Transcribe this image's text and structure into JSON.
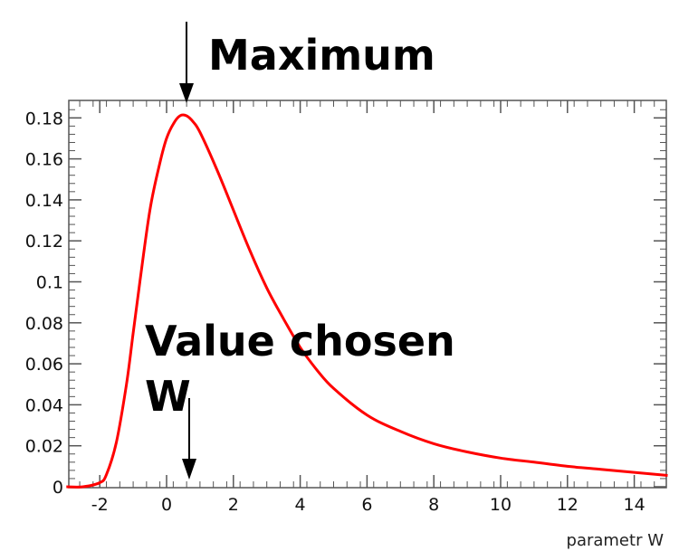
{
  "chart_data": {
    "type": "line",
    "title": "",
    "xlabel": "parametr W",
    "ylabel": "",
    "xlim": [
      -3,
      15
    ],
    "ylim": [
      0,
      0.185
    ],
    "x_ticks": [
      -2,
      0,
      2,
      4,
      6,
      8,
      10,
      12,
      14
    ],
    "x_tick_labels": [
      "-2",
      "0",
      "2",
      "4",
      "6",
      "8",
      "10",
      "12",
      "14"
    ],
    "y_ticks": [
      0,
      0.02,
      0.04,
      0.06,
      0.08,
      0.1,
      0.12,
      0.14,
      0.16,
      0.18
    ],
    "y_tick_labels": [
      "0",
      "0.02",
      "0.04",
      "0.06",
      "0.08",
      "0.1",
      "0.12",
      "0.14",
      "0.16",
      "0.18"
    ],
    "grid": false,
    "series": [
      {
        "color": "#ff0000",
        "x": [
          -3,
          -2.5,
          -2,
          -1.8,
          -1.5,
          -1.2,
          -1,
          -0.8,
          -0.5,
          -0.2,
          0,
          0.2,
          0.4,
          0.6,
          0.8,
          1,
          1.5,
          2,
          2.5,
          3,
          3.5,
          4,
          4.5,
          5,
          6,
          7,
          8,
          9,
          10,
          11,
          12,
          13,
          14,
          15
        ],
        "y": [
          0,
          0,
          0.002,
          0.006,
          0.022,
          0.05,
          0.075,
          0.1,
          0.135,
          0.158,
          0.17,
          0.177,
          0.181,
          0.181,
          0.178,
          0.173,
          0.155,
          0.135,
          0.115,
          0.097,
          0.082,
          0.068,
          0.057,
          0.048,
          0.035,
          0.027,
          0.021,
          0.017,
          0.014,
          0.012,
          0.01,
          0.0085,
          0.007,
          0.0055
        ]
      }
    ],
    "annotations": [
      {
        "text": "Maximum",
        "x": 0.6,
        "arrow_to_y": 0.181
      },
      {
        "text_lines": [
          "Value chosen",
          "W"
        ],
        "x": 0.7,
        "arrow_to_y": 0.004
      }
    ]
  }
}
